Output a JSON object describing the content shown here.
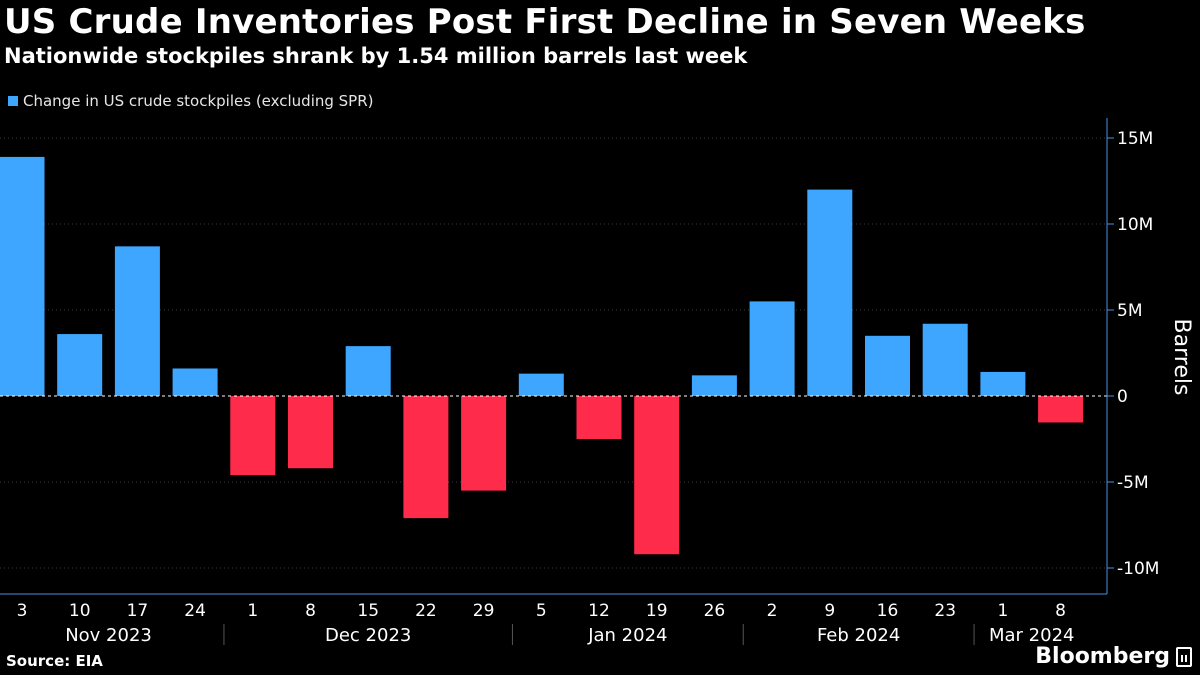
{
  "header": {
    "title": "US Crude Inventories Post First Decline in Seven Weeks",
    "subtitle": "Nationwide stockpiles shrank by 1.54 million barrels last week"
  },
  "footer": {
    "source": "Source: EIA",
    "brand": "Bloomberg"
  },
  "colors": {
    "positive": "#3ea6ff",
    "negative": "#ff2b4a",
    "background": "#000000",
    "axis": "#4a90e2"
  },
  "chart_data": {
    "type": "bar",
    "legend": [
      "Change in US crude stockpiles (excluding SPR)"
    ],
    "legend_position": "top-left",
    "ylabel": "Barrels",
    "y_axis_side": "right",
    "ylim": [
      -11,
      16
    ],
    "y_ticks": [
      {
        "value": 15,
        "label": "15M"
      },
      {
        "value": 10,
        "label": "10M"
      },
      {
        "value": 5,
        "label": "5M"
      },
      {
        "value": 0,
        "label": "0"
      },
      {
        "value": -5,
        "label": "-5M"
      },
      {
        "value": -10,
        "label": "-10M"
      }
    ],
    "units": "million barrels",
    "grid": true,
    "categories": [
      "3",
      "10",
      "17",
      "24",
      "1",
      "8",
      "15",
      "22",
      "29",
      "5",
      "12",
      "19",
      "26",
      "2",
      "9",
      "16",
      "23",
      "1",
      "8"
    ],
    "months": [
      {
        "label": "Nov 2023",
        "start": 0,
        "end": 3
      },
      {
        "label": "Dec 2023",
        "start": 4,
        "end": 8
      },
      {
        "label": "Jan 2024",
        "start": 9,
        "end": 12
      },
      {
        "label": "Feb 2024",
        "start": 13,
        "end": 16
      },
      {
        "label": "Mar 2024",
        "start": 17,
        "end": 18
      }
    ],
    "series": [
      {
        "name": "Change in US crude stockpiles (excluding SPR)",
        "values": [
          13.9,
          3.6,
          8.7,
          1.6,
          -4.6,
          -4.2,
          2.9,
          -7.1,
          -5.5,
          1.3,
          -2.5,
          -9.2,
          1.2,
          5.5,
          12.0,
          3.5,
          4.2,
          1.4,
          -1.54
        ]
      }
    ]
  }
}
